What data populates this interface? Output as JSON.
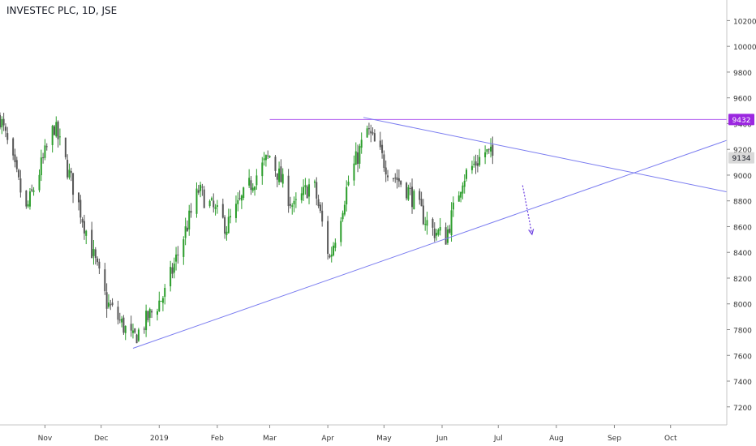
{
  "chart_title": "INVESTEC PLC, 1D, JSE",
  "colors": {
    "up": "#2a9d2a",
    "down": "#555555",
    "trendline": "#7a7cf0",
    "resistance": "#b05cf0",
    "arrow": "#6a3ce0",
    "price_label_purple": "#9b27e0",
    "price_label_grey": "#d9d9d9"
  },
  "chart_data": {
    "type": "candlestick",
    "title": "INVESTEC PLC, 1D, JSE",
    "ylim": [
      7060,
      10360
    ],
    "y_ticks": [
      7200,
      7400,
      7600,
      7800,
      8000,
      8200,
      8400,
      8600,
      8800,
      9000,
      9200,
      9400,
      9600,
      9800,
      10000,
      10200
    ],
    "x_ticks": [
      {
        "label": "Nov",
        "date": "2018-11-01"
      },
      {
        "label": "Dec",
        "date": "2018-12-01"
      },
      {
        "label": "2019",
        "date": "2019-01-01"
      },
      {
        "label": "Feb",
        "date": "2019-02-01"
      },
      {
        "label": "Mar",
        "date": "2019-03-01"
      },
      {
        "label": "Apr",
        "date": "2019-04-01"
      },
      {
        "label": "May",
        "date": "2019-05-01"
      },
      {
        "label": "Jun",
        "date": "2019-06-01"
      },
      {
        "label": "Jul",
        "date": "2019-07-01"
      },
      {
        "label": "Aug",
        "date": "2019-08-01"
      },
      {
        "label": "Sep",
        "date": "2019-09-01"
      },
      {
        "label": "Oct",
        "date": "2019-10-01"
      }
    ],
    "xlim": [
      "2018-10-08",
      "2019-10-31"
    ],
    "price_labels": [
      {
        "value": 9432,
        "text": "9432",
        "style": "purple"
      },
      {
        "value": 9134,
        "text": "9134",
        "style": "grey"
      }
    ],
    "lines": [
      {
        "name": "resistance",
        "from": {
          "date": "2019-03-01",
          "value": 9432
        },
        "to": {
          "date": "2019-10-31",
          "value": 9432
        }
      },
      {
        "name": "descending-trendline",
        "from": {
          "date": "2019-04-20",
          "value": 9448
        },
        "to": {
          "date": "2019-10-31",
          "value": 8870
        }
      },
      {
        "name": "ascending-trendline",
        "from": {
          "date": "2018-12-18",
          "value": 7655
        },
        "to": {
          "date": "2019-10-31",
          "value": 9270
        }
      }
    ],
    "arrow": {
      "from": {
        "date": "2019-07-14",
        "value": 8920
      },
      "to": {
        "date": "2019-07-19",
        "value": 8540
      }
    },
    "anchors": [
      {
        "date": "2018-10-08",
        "value": 9450
      },
      {
        "date": "2018-10-22",
        "value": 8720
      },
      {
        "date": "2018-11-06",
        "value": 9380
      },
      {
        "date": "2018-11-20",
        "value": 8720
      },
      {
        "date": "2018-12-04",
        "value": 8010
      },
      {
        "date": "2018-12-18",
        "value": 7720
      },
      {
        "date": "2019-01-04",
        "value": 8080
      },
      {
        "date": "2019-01-22",
        "value": 8880
      },
      {
        "date": "2019-02-06",
        "value": 8600
      },
      {
        "date": "2019-02-20",
        "value": 8960
      },
      {
        "date": "2019-03-01",
        "value": 9150
      },
      {
        "date": "2019-03-14",
        "value": 8740
      },
      {
        "date": "2019-03-24",
        "value": 8960
      },
      {
        "date": "2019-04-02",
        "value": 8350
      },
      {
        "date": "2019-04-12",
        "value": 8950
      },
      {
        "date": "2019-04-22",
        "value": 9350
      },
      {
        "date": "2019-05-03",
        "value": 9050
      },
      {
        "date": "2019-05-14",
        "value": 8880
      },
      {
        "date": "2019-05-26",
        "value": 8580
      },
      {
        "date": "2019-06-03",
        "value": 8520
      },
      {
        "date": "2019-06-12",
        "value": 8980
      },
      {
        "date": "2019-06-24",
        "value": 9180
      },
      {
        "date": "2019-06-29",
        "value": 9134
      }
    ]
  }
}
